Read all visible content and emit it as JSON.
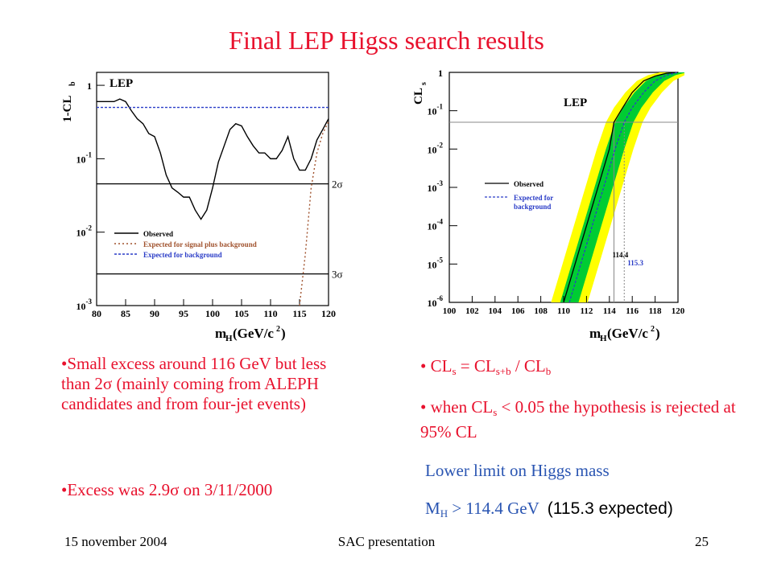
{
  "slide": {
    "title": "Final LEP Higss search results",
    "footer_left": "15 november 2004",
    "footer_center": "SAC presentation",
    "footer_right": "25"
  },
  "left_text": {
    "bullet1": "•Small excess around 116 GeV but less than 2σ (mainly coming from ALEPH candidates and from four-jet events)",
    "bullet2": "•Excess was 2.9σ on 3/11/2000"
  },
  "right_text": {
    "cls_bullet": {
      "prefix": "• CL",
      "s1": "s",
      "eq": " = CL",
      "s2": "s+b",
      "div": " / CL",
      "s3": "b"
    },
    "when_bullet": "• when CL",
    "when_sub": "s",
    "when_rest": " < 0.05 the hypothesis is rejected at 95% CL",
    "lower_limit": "Lower limit on Higgs mass",
    "mh_prefix": "M",
    "mh_sub": "H",
    "mh_value": " > 114.4 GeV",
    "mh_expected": "(115.3 expected)"
  },
  "chart_data": [
    {
      "type": "line",
      "title": "LEP",
      "ylabel": "1-CL_b",
      "xlabel": "m_H(GeV/c^2)",
      "x_ticks": [
        "80",
        "85",
        "90",
        "95",
        "100",
        "105",
        "110",
        "115",
        "120"
      ],
      "y_ticks": [
        "1",
        "10^-1",
        "10^-2",
        "10^-3"
      ],
      "xlim": [
        80,
        120
      ],
      "y_log": true,
      "ylim": [
        0.001,
        1.5
      ],
      "hlines": [
        {
          "label": "2σ",
          "value": 0.0455
        },
        {
          "label": "3σ",
          "value": 0.0027
        }
      ],
      "legend": [
        "Observed",
        "Expected for signal plus background",
        "Expected for background"
      ],
      "legend_colors": [
        "#000000",
        "#a0522d",
        "#2a3cc7"
      ],
      "series": [
        {
          "name": "Observed",
          "x": [
            80,
            81,
            82,
            83,
            84,
            85,
            86,
            87,
            88,
            89,
            90,
            91,
            92,
            93,
            94,
            95,
            96,
            97,
            98,
            99,
            100,
            101,
            102,
            103,
            104,
            105,
            106,
            107,
            108,
            109,
            110,
            111,
            112,
            113,
            114,
            115,
            116,
            117,
            118,
            119,
            120
          ],
          "y": [
            0.6,
            0.6,
            0.6,
            0.6,
            0.65,
            0.6,
            0.45,
            0.35,
            0.3,
            0.22,
            0.2,
            0.12,
            0.06,
            0.04,
            0.035,
            0.03,
            0.03,
            0.02,
            0.015,
            0.02,
            0.04,
            0.09,
            0.15,
            0.25,
            0.3,
            0.28,
            0.2,
            0.15,
            0.12,
            0.12,
            0.1,
            0.1,
            0.13,
            0.2,
            0.1,
            0.07,
            0.07,
            0.1,
            0.18,
            0.25,
            0.35
          ]
        },
        {
          "name": "Expected for signal plus background",
          "x": [
            115,
            116,
            117,
            118,
            119,
            120
          ],
          "y": [
            0.001,
            0.005,
            0.04,
            0.12,
            0.22,
            0.32
          ]
        },
        {
          "name": "Expected for background",
          "x": [
            80,
            120
          ],
          "y": [
            0.5,
            0.5
          ]
        }
      ]
    },
    {
      "type": "line",
      "title": "LEP",
      "ylabel": "CL_s",
      "xlabel": "m_H(GeV/c^2)",
      "x_ticks": [
        "100",
        "102",
        "104",
        "106",
        "108",
        "110",
        "112",
        "114",
        "116",
        "118",
        "120"
      ],
      "y_ticks": [
        "1",
        "10^-1",
        "10^-2",
        "10^-3",
        "10^-4",
        "10^-5",
        "10^-6"
      ],
      "xlim": [
        100,
        120
      ],
      "y_log": true,
      "ylim": [
        1e-06,
        1
      ],
      "hlines": [
        {
          "value": 0.05
        }
      ],
      "vlines": [
        {
          "label": "114.4",
          "value": 114.4
        },
        {
          "label": "115.3",
          "value": 115.3
        }
      ],
      "legend": [
        "Observed",
        "Expected for background"
      ],
      "legend_colors": [
        "#000000",
        "#2a3cc7"
      ],
      "series": [
        {
          "name": "Observed",
          "x": [
            110,
            111,
            112,
            113,
            114,
            114.4,
            115,
            116,
            117,
            118,
            119,
            120
          ],
          "y": [
            1e-06,
            1e-05,
            0.0001,
            0.001,
            0.01,
            0.05,
            0.1,
            0.3,
            0.6,
            0.8,
            0.95,
            1
          ]
        },
        {
          "name": "Expected for background",
          "x": [
            110.5,
            111.5,
            112.5,
            113.5,
            114.5,
            115.3,
            116,
            117,
            118,
            119,
            120
          ],
          "y": [
            1e-06,
            1e-05,
            0.0001,
            0.001,
            0.01,
            0.05,
            0.12,
            0.3,
            0.6,
            0.85,
            1
          ]
        }
      ]
    }
  ]
}
